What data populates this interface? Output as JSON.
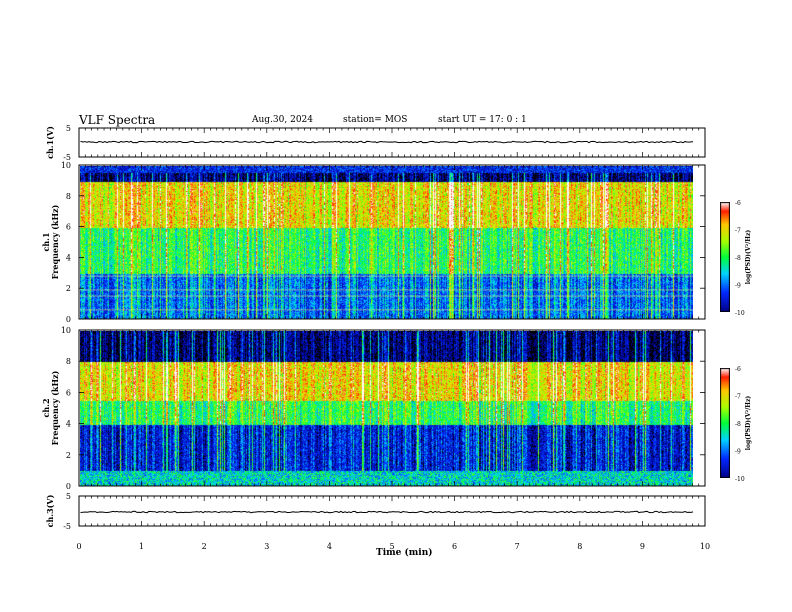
{
  "header": {
    "title": "VLF Spectra",
    "date": "Aug.30, 2024",
    "station": "station= MOS",
    "start": "start  UT =   17: 0  : 1"
  },
  "chart_data": [
    {
      "type": "line",
      "panel": "ch1-voltage",
      "ylabel": "ch.1(V)",
      "ylim": [
        -5,
        5
      ],
      "yticks": [
        "5",
        "-5"
      ],
      "x": [
        0,
        9.8
      ],
      "values": [
        0,
        0
      ]
    },
    {
      "type": "heatmap",
      "panel": "ch1-spectrogram",
      "ylabel": "ch.1\nFrequency (kHz)",
      "ylim": [
        0,
        10
      ],
      "yticks": [
        "0",
        "2",
        "4",
        "6",
        "8",
        "10"
      ],
      "xlim": [
        0,
        9.8
      ],
      "colorbar": {
        "label": "log(PSD)(V²/Hz)",
        "range": [
          -10,
          -6
        ],
        "ticks": [
          "-6",
          "-7",
          "-8",
          "-9",
          "-10"
        ]
      },
      "bands": [
        {
          "freq_range": [
            6,
            9
          ],
          "level": -7
        },
        {
          "freq_range": [
            3,
            6
          ],
          "level": -8
        },
        {
          "freq_range": [
            0,
            3
          ],
          "level": -9
        }
      ]
    },
    {
      "type": "heatmap",
      "panel": "ch2-spectrogram",
      "ylabel": "ch.2\nFrequency (kHz)",
      "ylim": [
        0,
        10
      ],
      "yticks": [
        "0",
        "2",
        "4",
        "6",
        "8",
        "10"
      ],
      "xlim": [
        0,
        9.8
      ],
      "colorbar": {
        "label": "log(PSD)(V²/Hz)",
        "range": [
          -10,
          -6
        ],
        "ticks": [
          "-6",
          "-7",
          "-8",
          "-9",
          "-10"
        ]
      },
      "bands": [
        {
          "freq_range": [
            5.5,
            8
          ],
          "level": -7
        },
        {
          "freq_range": [
            4,
            5.5
          ],
          "level": -8
        },
        {
          "freq_range": [
            0,
            4
          ],
          "level": -9.5
        }
      ]
    },
    {
      "type": "line",
      "panel": "ch3-voltage",
      "ylabel": "ch.3(V)",
      "ylim": [
        -5,
        5
      ],
      "yticks": [
        "5",
        "-5"
      ],
      "x": [
        0,
        9.8
      ],
      "values": [
        0,
        0
      ]
    }
  ],
  "xaxis": {
    "label": "Time (min)",
    "xlim": [
      0,
      10
    ],
    "ticks": [
      "0",
      "1",
      "2",
      "3",
      "4",
      "5",
      "6",
      "7",
      "8",
      "9",
      "10"
    ]
  },
  "colors": {
    "low": "#000080",
    "mid": "#00ff00",
    "high": "#ff0000",
    "floor": "#000000"
  }
}
